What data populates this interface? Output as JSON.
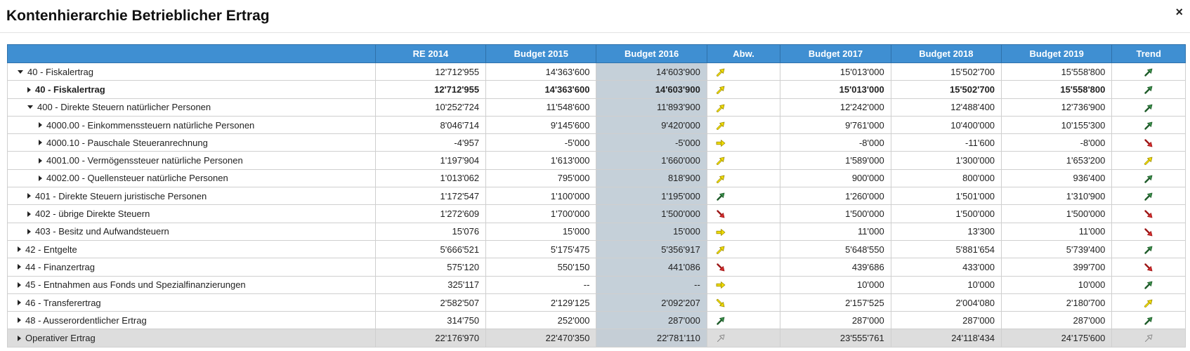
{
  "dialog": {
    "title": "Kontenhierarchie Betrieblicher Ertrag",
    "close_glyph": "×"
  },
  "columns": [
    "",
    "RE 2014",
    "Budget 2015",
    "Budget 2016",
    "Abw.",
    "Budget 2017",
    "Budget 2018",
    "Budget 2019",
    "Trend"
  ],
  "colors": {
    "header_bg": "#3f8fd2",
    "budget2016_bg": "#c5d0d9",
    "up": "#3a8f4a",
    "warn": "#e8d300",
    "down": "#d52b2b"
  },
  "rows": [
    {
      "name": "40 - Fiskalertrag",
      "indent": 0,
      "tri": "open",
      "bold": false,
      "re2014": "12'712'955",
      "b2015": "14'363'600",
      "b2016": "14'603'900",
      "abw": "warn-up",
      "b2017": "15'013'000",
      "b2018": "15'502'700",
      "b2019": "15'558'800",
      "trend": "up"
    },
    {
      "name": "40 - Fiskalertrag",
      "indent": 1,
      "tri": "closed",
      "bold": true,
      "re2014": "12'712'955",
      "b2015": "14'363'600",
      "b2016": "14'603'900",
      "abw": "warn-up",
      "b2017": "15'013'000",
      "b2018": "15'502'700",
      "b2019": "15'558'800",
      "trend": "up"
    },
    {
      "name": "400 - Direkte Steuern natürlicher Personen",
      "indent": 1,
      "tri": "open",
      "bold": false,
      "re2014": "10'252'724",
      "b2015": "11'548'600",
      "b2016": "11'893'900",
      "abw": "warn-up",
      "b2017": "12'242'000",
      "b2018": "12'488'400",
      "b2019": "12'736'900",
      "trend": "up"
    },
    {
      "name": "4000.00 - Einkommenssteuern natürliche Personen",
      "indent": 2,
      "tri": "closed",
      "bold": false,
      "re2014": "8'046'714",
      "b2015": "9'145'600",
      "b2016": "9'420'000",
      "abw": "warn-up",
      "b2017": "9'761'000",
      "b2018": "10'400'000",
      "b2019": "10'155'300",
      "trend": "up"
    },
    {
      "name": "4000.10 - Pauschale Steueranrechnung",
      "indent": 2,
      "tri": "closed",
      "bold": false,
      "re2014": "-4'957",
      "b2015": "-5'000",
      "b2016": "-5'000",
      "abw": "warn-right",
      "b2017": "-8'000",
      "b2018": "-11'600",
      "b2019": "-8'000",
      "trend": "down"
    },
    {
      "name": "4001.00 - Vermögenssteuer natürliche Personen",
      "indent": 2,
      "tri": "closed",
      "bold": false,
      "re2014": "1'197'904",
      "b2015": "1'613'000",
      "b2016": "1'660'000",
      "abw": "warn-up",
      "b2017": "1'589'000",
      "b2018": "1'300'000",
      "b2019": "1'653'200",
      "trend": "warn-up"
    },
    {
      "name": "4002.00 - Quellensteuer natürliche Personen",
      "indent": 2,
      "tri": "closed",
      "bold": false,
      "re2014": "1'013'062",
      "b2015": "795'000",
      "b2016": "818'900",
      "abw": "warn-up",
      "b2017": "900'000",
      "b2018": "800'000",
      "b2019": "936'400",
      "trend": "up"
    },
    {
      "name": "401 - Direkte Steuern juristische Personen",
      "indent": 1,
      "tri": "closed",
      "bold": false,
      "re2014": "1'172'547",
      "b2015": "1'100'000",
      "b2016": "1'195'000",
      "abw": "up",
      "b2017": "1'260'000",
      "b2018": "1'501'000",
      "b2019": "1'310'900",
      "trend": "up"
    },
    {
      "name": "402 - übrige Direkte Steuern",
      "indent": 1,
      "tri": "closed",
      "bold": false,
      "re2014": "1'272'609",
      "b2015": "1'700'000",
      "b2016": "1'500'000",
      "abw": "down",
      "b2017": "1'500'000",
      "b2018": "1'500'000",
      "b2019": "1'500'000",
      "trend": "down"
    },
    {
      "name": "403 - Besitz und Aufwandsteuern",
      "indent": 1,
      "tri": "closed",
      "bold": false,
      "re2014": "15'076",
      "b2015": "15'000",
      "b2016": "15'000",
      "abw": "warn-right",
      "b2017": "11'000",
      "b2018": "13'300",
      "b2019": "11'000",
      "trend": "down"
    },
    {
      "name": "42 - Entgelte",
      "indent": 0,
      "tri": "closed",
      "bold": false,
      "re2014": "5'666'521",
      "b2015": "5'175'475",
      "b2016": "5'356'917",
      "abw": "warn-up",
      "b2017": "5'648'550",
      "b2018": "5'881'654",
      "b2019": "5'739'400",
      "trend": "up"
    },
    {
      "name": "44 - Finanzertrag",
      "indent": 0,
      "tri": "closed",
      "bold": false,
      "re2014": "575'120",
      "b2015": "550'150",
      "b2016": "441'086",
      "abw": "down",
      "b2017": "439'686",
      "b2018": "433'000",
      "b2019": "399'700",
      "trend": "down"
    },
    {
      "name": "45 - Entnahmen aus Fonds und Spezialfinanzierungen",
      "indent": 0,
      "tri": "closed",
      "bold": false,
      "re2014": "325'117",
      "b2015": "--",
      "b2016": "--",
      "abw": "warn-right",
      "b2017": "10'000",
      "b2018": "10'000",
      "b2019": "10'000",
      "trend": "up"
    },
    {
      "name": "46 - Transferertrag",
      "indent": 0,
      "tri": "closed",
      "bold": false,
      "re2014": "2'582'507",
      "b2015": "2'129'125",
      "b2016": "2'092'207",
      "abw": "warn-down",
      "b2017": "2'157'525",
      "b2018": "2'004'080",
      "b2019": "2'180'700",
      "trend": "warn-up"
    },
    {
      "name": "48 - Ausserordentlicher Ertrag",
      "indent": 0,
      "tri": "closed",
      "bold": false,
      "re2014": "314'750",
      "b2015": "252'000",
      "b2016": "287'000",
      "abw": "up",
      "b2017": "287'000",
      "b2018": "287'000",
      "b2019": "287'000",
      "trend": "up"
    },
    {
      "name": "Operativer Ertrag",
      "indent": 0,
      "tri": "closed",
      "bold": false,
      "total": true,
      "re2014": "22'176'970",
      "b2015": "22'470'350",
      "b2016": "22'781'110",
      "abw": "gray-up",
      "b2017": "23'555'761",
      "b2018": "24'118'434",
      "b2019": "24'175'600",
      "trend": "gray-up"
    }
  ]
}
